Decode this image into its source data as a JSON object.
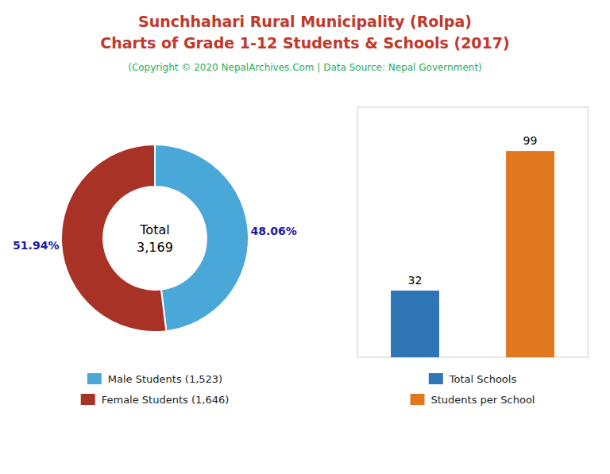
{
  "title": "Sunchhahari Rural Municipality (Rolpa)\nCharts of Grade 1-12 Students & Schools (2017)",
  "subtitle": "(Copyright © 2020 NepalArchives.Com | Data Source: Nepal Government)",
  "chart_data": [
    {
      "type": "donut",
      "categories": [
        "Male Students (1,523)",
        "Female Students (1,646)"
      ],
      "values": [
        48.06,
        51.94
      ],
      "value_labels": [
        "48.06%",
        "51.94%"
      ],
      "colors": [
        "#4aa8d8",
        "#a93226"
      ],
      "data_labels": true,
      "legend": "bottom",
      "annotations": [
        "Total",
        "3,169"
      ]
    },
    {
      "type": "bar",
      "categories": [
        "Total Schools",
        "Students per School"
      ],
      "values": [
        32,
        99
      ],
      "colors": [
        "#2e75b6",
        "#e07820"
      ],
      "ylim": [
        0,
        120
      ],
      "tick_labels": false,
      "data_labels": true,
      "legend": "bottom"
    }
  ]
}
